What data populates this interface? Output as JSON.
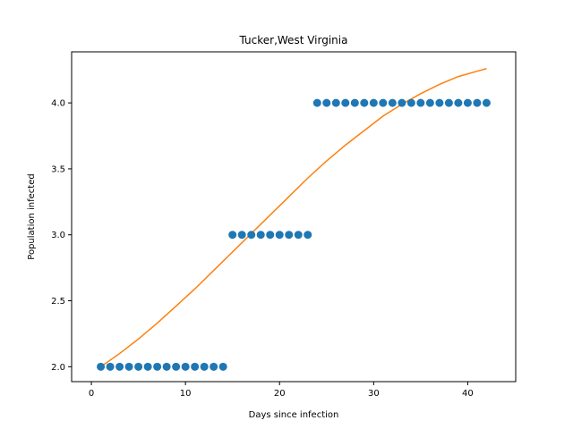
{
  "chart_data": {
    "type": "scatter",
    "title": "Tucker,West Virginia",
    "xlabel": "Days since infection",
    "ylabel": "Population infected",
    "xlim": [
      -2.1,
      45.1
    ],
    "ylim": [
      1.887,
      4.387
    ],
    "xticks": [
      0,
      10,
      20,
      30,
      40
    ],
    "yticks": [
      2.0,
      2.5,
      3.0,
      3.5,
      4.0
    ],
    "ytick_labels": [
      "2.0",
      "2.5",
      "3.0",
      "3.5",
      "4.0"
    ],
    "xtick_labels": [
      "0",
      "10",
      "20",
      "30",
      "40"
    ],
    "grid": false,
    "legend": "none",
    "series": [
      {
        "kind": "scatter",
        "color": "#1f77b4",
        "x": [
          1,
          2,
          3,
          4,
          5,
          6,
          7,
          8,
          9,
          10,
          11,
          12,
          13,
          14,
          15,
          16,
          17,
          18,
          19,
          20,
          21,
          22,
          23,
          24,
          25,
          26,
          27,
          28,
          29,
          30,
          31,
          32,
          33,
          34,
          35,
          36,
          37,
          38,
          39,
          40,
          41,
          42
        ],
        "y": [
          2,
          2,
          2,
          2,
          2,
          2,
          2,
          2,
          2,
          2,
          2,
          2,
          2,
          2,
          3,
          3,
          3,
          3,
          3,
          3,
          3,
          3,
          3,
          4,
          4,
          4,
          4,
          4,
          4,
          4,
          4,
          4,
          4,
          4,
          4,
          4,
          4,
          4,
          4,
          4,
          4,
          4
        ]
      },
      {
        "kind": "line",
        "color": "#ff7f0e",
        "x": [
          1,
          3,
          5,
          7,
          9,
          11,
          13,
          15,
          17,
          19,
          21,
          23,
          25,
          27,
          29,
          31,
          33,
          35,
          37,
          39,
          41,
          42
        ],
        "y": [
          2.0,
          2.1,
          2.21,
          2.33,
          2.46,
          2.59,
          2.73,
          2.87,
          3.01,
          3.15,
          3.29,
          3.43,
          3.56,
          3.68,
          3.79,
          3.9,
          3.99,
          4.07,
          4.14,
          4.2,
          4.24,
          4.26
        ]
      }
    ]
  }
}
